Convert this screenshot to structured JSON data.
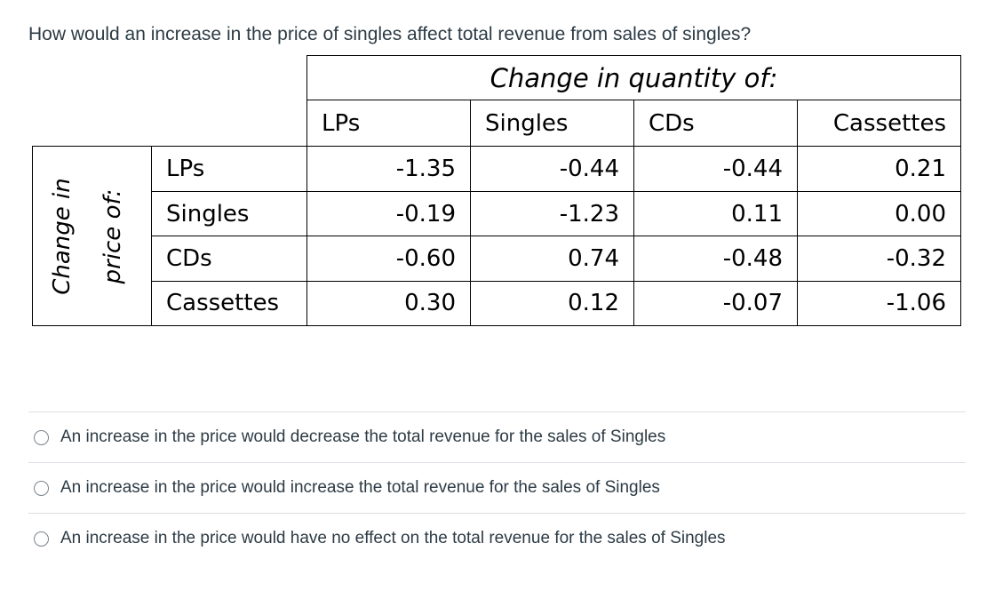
{
  "question": "How would an increase in the price of singles affect total revenue from sales of singles?",
  "table": {
    "title": "Change in quantity of:",
    "side_label_1": "Change in",
    "side_label_2": "price of:",
    "columns": [
      "LPs",
      "Singles",
      "CDs",
      "Cassettes"
    ],
    "rows": [
      {
        "label": "LPs",
        "values": [
          "-1.35",
          "-0.44",
          "-0.44",
          "0.21"
        ]
      },
      {
        "label": "Singles",
        "values": [
          "-0.19",
          "-1.23",
          "0.11",
          "0.00"
        ]
      },
      {
        "label": "CDs",
        "values": [
          "-0.60",
          "0.74",
          "-0.48",
          "-0.32"
        ]
      },
      {
        "label": "Cassettes",
        "values": [
          "0.30",
          "0.12",
          "-0.07",
          "-1.06"
        ]
      }
    ]
  },
  "options": [
    "An increase in the price would decrease the total revenue for the sales of Singles",
    "An increase in the price would increase the total revenue for the sales of Singles",
    "An increase in the price would have no effect on the total revenue for the sales of Singles"
  ]
}
